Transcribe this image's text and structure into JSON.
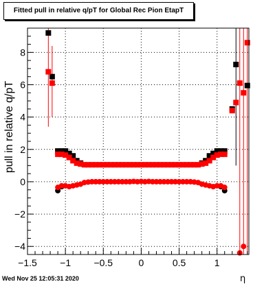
{
  "title": "Fitted pull in relative q/pT for Global Rec Pion EtapT",
  "timestamp": "Wed Nov 25 12:05:31 2020",
  "chart_data": {
    "type": "scatter",
    "title": "Fitted pull in relative q/pT for Global Rec Pion EtapT",
    "xlabel": "η",
    "ylabel": "pull in relative q/pT",
    "xlim": [
      -1.5,
      1.42
    ],
    "ylim": [
      -4.5,
      9.5
    ],
    "grid": true,
    "xticks": [
      "−1.5",
      "−1",
      "−0.5",
      "0",
      "0.5",
      "1"
    ],
    "xtick_values": [
      -1.5,
      -1,
      -0.5,
      0,
      0.5,
      1
    ],
    "yticks": [
      "−4",
      "−2",
      "0",
      "2",
      "4",
      "6",
      "8"
    ],
    "ytick_values": [
      -4,
      -2,
      0,
      2,
      4,
      6,
      8
    ],
    "colors": {
      "mean_black": "#000000",
      "mean_red": "#ff0000",
      "sigma_black": "#000000",
      "sigma_red": "#ff0000"
    },
    "series": [
      {
        "marker": "square",
        "color": "#000000",
        "points": [
          {
            "x": -1.225,
            "y": 9.2
          },
          {
            "x": -1.175,
            "y": 6.5
          },
          {
            "x": -1.1,
            "y": 1.9
          },
          {
            "x": -1.05,
            "y": 1.9
          },
          {
            "x": -1.0,
            "y": 1.9
          },
          {
            "x": -0.95,
            "y": 1.75
          },
          {
            "x": -0.9,
            "y": 1.6
          },
          {
            "x": -0.85,
            "y": 1.3
          },
          {
            "x": -0.8,
            "y": 1.15
          },
          {
            "x": 0.8,
            "y": 1.15
          },
          {
            "x": 0.85,
            "y": 1.3
          },
          {
            "x": 0.9,
            "y": 1.6
          },
          {
            "x": 0.95,
            "y": 1.75
          },
          {
            "x": 1.0,
            "y": 1.9
          },
          {
            "x": 1.05,
            "y": 1.9
          },
          {
            "x": 1.1,
            "y": 1.9
          },
          {
            "x": 1.2,
            "y": 4.5
          },
          {
            "x": 1.25,
            "y": 7.25
          },
          {
            "x": 1.4,
            "y": 5.95
          }
        ]
      },
      {
        "marker": "circle",
        "color": "#000000",
        "points": [
          {
            "x": -1.1,
            "y": -0.55
          },
          {
            "x": -1.05,
            "y": -0.3
          },
          {
            "x": 1.05,
            "y": -0.3
          },
          {
            "x": 1.1,
            "y": -0.55
          }
        ]
      },
      {
        "marker": "square",
        "color": "#ff0000",
        "points": [
          {
            "x": -1.225,
            "y": 6.8
          },
          {
            "x": -1.175,
            "y": 6.1
          },
          {
            "x": -1.1,
            "y": 1.7
          },
          {
            "x": -1.05,
            "y": 1.7
          },
          {
            "x": -1.0,
            "y": 1.65
          },
          {
            "x": -0.95,
            "y": 1.5
          },
          {
            "x": -0.9,
            "y": 1.3
          },
          {
            "x": -0.85,
            "y": 1.15
          },
          {
            "x": -0.8,
            "y": 1.1
          },
          {
            "x": -0.75,
            "y": 1.05
          },
          {
            "x": -0.7,
            "y": 1.05
          },
          {
            "x": -0.65,
            "y": 1.05
          },
          {
            "x": -0.6,
            "y": 1.05
          },
          {
            "x": -0.55,
            "y": 1.05
          },
          {
            "x": -0.5,
            "y": 1.05
          },
          {
            "x": -0.45,
            "y": 1.05
          },
          {
            "x": -0.4,
            "y": 1.05
          },
          {
            "x": -0.35,
            "y": 1.05
          },
          {
            "x": -0.3,
            "y": 1.05
          },
          {
            "x": -0.25,
            "y": 1.05
          },
          {
            "x": -0.2,
            "y": 1.05
          },
          {
            "x": -0.15,
            "y": 1.05
          },
          {
            "x": -0.1,
            "y": 1.05
          },
          {
            "x": -0.05,
            "y": 1.05
          },
          {
            "x": 0.0,
            "y": 1.05
          },
          {
            "x": 0.05,
            "y": 1.05
          },
          {
            "x": 0.1,
            "y": 1.05
          },
          {
            "x": 0.15,
            "y": 1.05
          },
          {
            "x": 0.2,
            "y": 1.05
          },
          {
            "x": 0.25,
            "y": 1.05
          },
          {
            "x": 0.3,
            "y": 1.05
          },
          {
            "x": 0.35,
            "y": 1.05
          },
          {
            "x": 0.4,
            "y": 1.05
          },
          {
            "x": 0.45,
            "y": 1.05
          },
          {
            "x": 0.5,
            "y": 1.05
          },
          {
            "x": 0.55,
            "y": 1.05
          },
          {
            "x": 0.6,
            "y": 1.05
          },
          {
            "x": 0.65,
            "y": 1.05
          },
          {
            "x": 0.7,
            "y": 1.05
          },
          {
            "x": 0.75,
            "y": 1.05
          },
          {
            "x": 0.8,
            "y": 1.1
          },
          {
            "x": 0.85,
            "y": 1.15
          },
          {
            "x": 0.9,
            "y": 1.3
          },
          {
            "x": 0.95,
            "y": 1.5
          },
          {
            "x": 1.0,
            "y": 1.65
          },
          {
            "x": 1.05,
            "y": 1.7
          },
          {
            "x": 1.1,
            "y": 1.7
          },
          {
            "x": 1.2,
            "y": 4.4
          },
          {
            "x": 1.25,
            "y": 4.9
          },
          {
            "x": 1.3,
            "y": 6.1
          },
          {
            "x": 1.35,
            "y": 5.5
          },
          {
            "x": 1.4,
            "y": 8.6
          }
        ]
      },
      {
        "marker": "circle",
        "color": "#ff0000",
        "points": [
          {
            "x": -1.1,
            "y": -0.35
          },
          {
            "x": -1.05,
            "y": -0.25
          },
          {
            "x": -1.0,
            "y": -0.25
          },
          {
            "x": -0.95,
            "y": -0.3
          },
          {
            "x": -0.9,
            "y": -0.25
          },
          {
            "x": -0.85,
            "y": -0.2
          },
          {
            "x": -0.8,
            "y": -0.15
          },
          {
            "x": -0.75,
            "y": -0.05
          },
          {
            "x": -0.7,
            "y": -0.02
          },
          {
            "x": -0.65,
            "y": 0.0
          },
          {
            "x": -0.6,
            "y": 0.0
          },
          {
            "x": -0.55,
            "y": 0.0
          },
          {
            "x": -0.5,
            "y": 0.0
          },
          {
            "x": -0.45,
            "y": 0.0
          },
          {
            "x": -0.4,
            "y": 0.0
          },
          {
            "x": -0.35,
            "y": 0.0
          },
          {
            "x": -0.3,
            "y": 0.0
          },
          {
            "x": -0.25,
            "y": 0.0
          },
          {
            "x": -0.2,
            "y": 0.0
          },
          {
            "x": -0.15,
            "y": 0.0
          },
          {
            "x": -0.1,
            "y": 0.02
          },
          {
            "x": -0.05,
            "y": 0.0
          },
          {
            "x": 0.0,
            "y": 0.02
          },
          {
            "x": 0.05,
            "y": 0.0
          },
          {
            "x": 0.1,
            "y": 0.02
          },
          {
            "x": 0.15,
            "y": 0.0
          },
          {
            "x": 0.2,
            "y": 0.0
          },
          {
            "x": 0.25,
            "y": 0.0
          },
          {
            "x": 0.3,
            "y": 0.0
          },
          {
            "x": 0.35,
            "y": 0.0
          },
          {
            "x": 0.4,
            "y": 0.0
          },
          {
            "x": 0.45,
            "y": 0.0
          },
          {
            "x": 0.5,
            "y": 0.0
          },
          {
            "x": 0.55,
            "y": 0.0
          },
          {
            "x": 0.6,
            "y": 0.0
          },
          {
            "x": 0.65,
            "y": 0.0
          },
          {
            "x": 0.7,
            "y": -0.02
          },
          {
            "x": 0.75,
            "y": -0.05
          },
          {
            "x": 0.8,
            "y": -0.15
          },
          {
            "x": 0.85,
            "y": -0.2
          },
          {
            "x": 0.9,
            "y": -0.25
          },
          {
            "x": 0.95,
            "y": -0.3
          },
          {
            "x": 1.0,
            "y": -0.25
          },
          {
            "x": 1.05,
            "y": -0.25
          },
          {
            "x": 1.1,
            "y": -0.35
          },
          {
            "x": 1.3,
            "y": -4.4
          },
          {
            "x": 1.35,
            "y": -4.0
          }
        ]
      }
    ],
    "error_bars": [
      {
        "x": -1.225,
        "low": 3.4,
        "high": 9.5,
        "color": "#ff0000"
      },
      {
        "x": -1.175,
        "low": 4.0,
        "high": 8.4,
        "color": "#ff0000"
      },
      {
        "x": 1.25,
        "low": 1.0,
        "high": 9.5,
        "color": "#000000"
      },
      {
        "x": 1.3,
        "low": -4.5,
        "high": 9.5,
        "color": "#ff0000"
      },
      {
        "x": 1.35,
        "low": -4.5,
        "high": 9.5,
        "color": "#ff0000"
      },
      {
        "x": 1.4,
        "low": -4.5,
        "high": 9.5,
        "color": "#ff0000"
      }
    ]
  }
}
